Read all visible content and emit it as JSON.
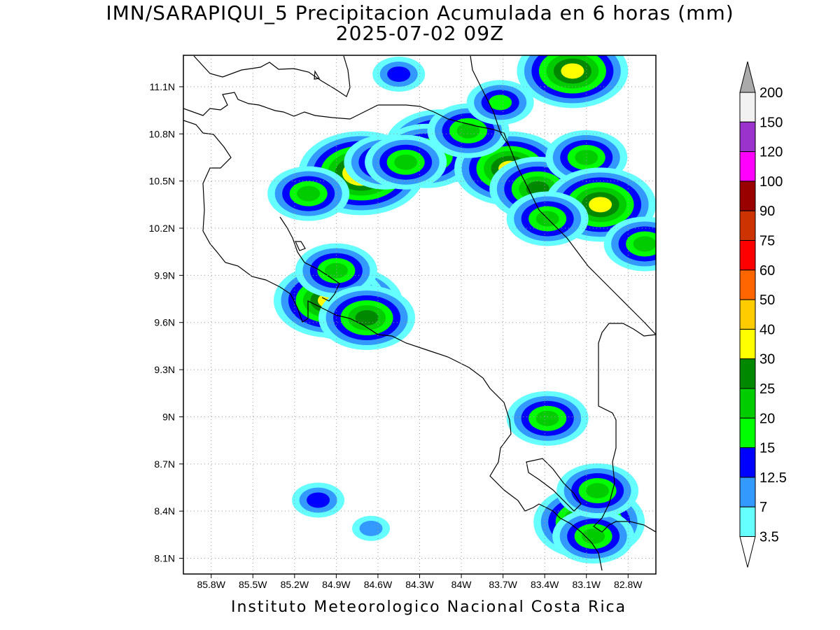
{
  "title_line1": "IMN/SARAPIQUI_5 Precipitacion Acumulada en 6 horas (mm)",
  "title_line2": "2025-07-02 09Z",
  "footer": "Instituto Meteorologico Nacional Costa Rica",
  "map": {
    "lon_range": [
      -86.0,
      -82.6
    ],
    "lat_range": [
      8.0,
      11.3
    ],
    "lat_ticks": [
      "11.1N",
      "10.8N",
      "10.5N",
      "10.2N",
      "9.9N",
      "9.6N",
      "9.3N",
      "9N",
      "8.7N",
      "8.4N",
      "8.1N"
    ],
    "lat_values": [
      11.1,
      10.8,
      10.5,
      10.2,
      9.9,
      9.6,
      9.3,
      9.0,
      8.7,
      8.4,
      8.1
    ],
    "lon_ticks": [
      "85.8W",
      "85.5W",
      "85.2W",
      "84.9W",
      "84.6W",
      "84.3W",
      "84W",
      "83.7W",
      "83.4W",
      "83.1W",
      "82.8W"
    ],
    "lon_values": [
      -85.8,
      -85.5,
      -85.2,
      -84.9,
      -84.6,
      -84.3,
      -84.0,
      -83.7,
      -83.4,
      -83.1,
      -82.8
    ],
    "grid": "dotted"
  },
  "colorbar": {
    "labels": [
      "3.5",
      "7",
      "12.5",
      "15",
      "20",
      "25",
      "30",
      "40",
      "50",
      "60",
      "75",
      "90",
      "100",
      "120",
      "150",
      "200"
    ],
    "colors": [
      "#ffffff",
      "#66ffff",
      "#3399ff",
      "#0000ff",
      "#00ff00",
      "#00cc00",
      "#008800",
      "#ffff00",
      "#ffcc00",
      "#ff6600",
      "#ff0000",
      "#cc3300",
      "#990000",
      "#ff00ff",
      "#9933cc",
      "#f2f2f2",
      "#aaaaaa"
    ]
  },
  "precip_cells": [
    {
      "lon": -84.72,
      "lat": 10.55,
      "level": 8
    },
    {
      "lon": -84.55,
      "lat": 10.62,
      "level": 5
    },
    {
      "lon": -84.15,
      "lat": 10.72,
      "level": 7
    },
    {
      "lon": -84.25,
      "lat": 10.66,
      "level": 6
    },
    {
      "lon": -84.4,
      "lat": 10.62,
      "level": 5
    },
    {
      "lon": -83.65,
      "lat": 10.58,
      "level": 7
    },
    {
      "lon": -83.45,
      "lat": 10.45,
      "level": 6
    },
    {
      "lon": -83.1,
      "lat": 10.65,
      "level": 5
    },
    {
      "lon": -83.0,
      "lat": 10.35,
      "level": 7
    },
    {
      "lon": -83.2,
      "lat": 11.2,
      "level": 7
    },
    {
      "lon": -84.45,
      "lat": 11.18,
      "level": 3
    },
    {
      "lon": -83.95,
      "lat": 10.82,
      "level": 5
    },
    {
      "lon": -85.1,
      "lat": 10.42,
      "level": 5
    },
    {
      "lon": -84.82,
      "lat": 9.72,
      "level": 7
    },
    {
      "lon": -84.95,
      "lat": 9.74,
      "level": 7
    },
    {
      "lon": -84.9,
      "lat": 9.93,
      "level": 5
    },
    {
      "lon": -84.68,
      "lat": 9.63,
      "level": 6
    },
    {
      "lon": -83.38,
      "lat": 8.99,
      "level": 5
    },
    {
      "lon": -83.08,
      "lat": 8.33,
      "level": 7
    },
    {
      "lon": -83.05,
      "lat": 8.24,
      "level": 5
    },
    {
      "lon": -83.02,
      "lat": 8.53,
      "level": 5
    },
    {
      "lon": -85.03,
      "lat": 8.47,
      "level": 3
    },
    {
      "lon": -84.65,
      "lat": 8.29,
      "level": 2
    },
    {
      "lon": -82.68,
      "lat": 10.1,
      "level": 5
    },
    {
      "lon": -83.38,
      "lat": 10.26,
      "level": 5
    },
    {
      "lon": -83.72,
      "lat": 11.0,
      "level": 4
    }
  ]
}
